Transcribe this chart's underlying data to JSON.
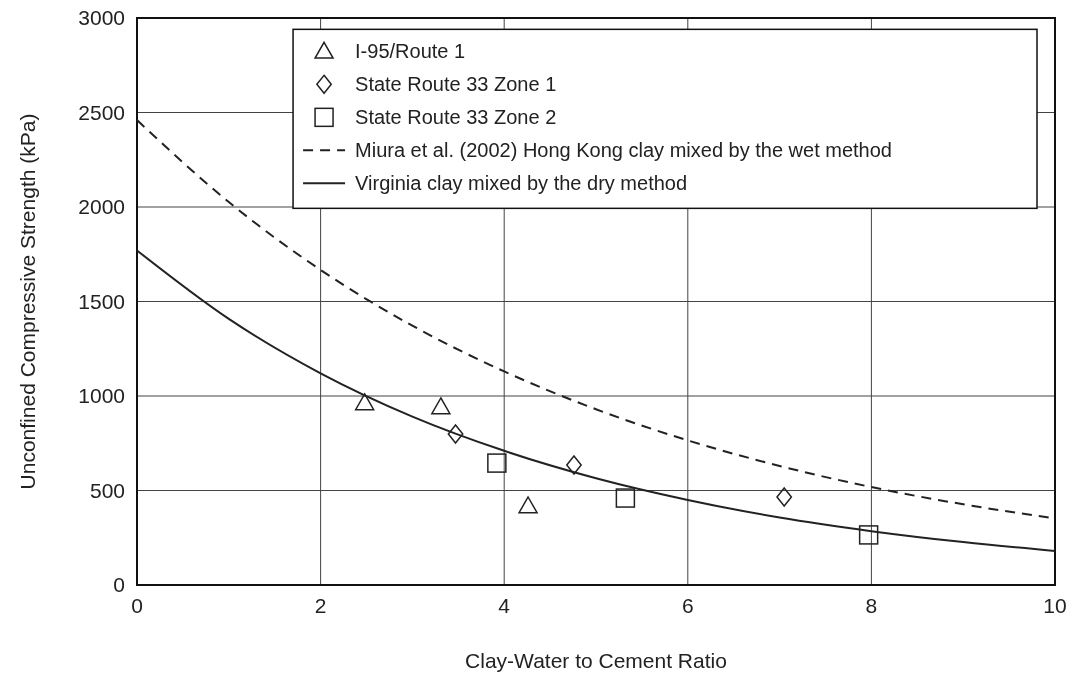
{
  "chart_data": {
    "type": "scatter",
    "xlabel": "Clay-Water to Cement Ratio",
    "ylabel": "Unconfined Compressive Strength (kPa)",
    "xlim": [
      0,
      10
    ],
    "xticks": [
      0,
      2,
      4,
      6,
      8,
      10
    ],
    "ylim": [
      0,
      3000
    ],
    "yticks": [
      0,
      500,
      1000,
      1500,
      2000,
      2500,
      3000
    ],
    "grid": true,
    "legend": "top",
    "series": [
      {
        "name": "I-95/Route 1",
        "marker": "triangle",
        "color": "#222222",
        "x": [
          2.48,
          3.31,
          4.26
        ],
        "values": [
          963,
          942,
          418
        ]
      },
      {
        "name": "State Route 33 Zone 1",
        "marker": "diamond",
        "color": "#222222",
        "x": [
          3.47,
          4.76,
          7.05
        ],
        "values": [
          799,
          635,
          466
        ]
      },
      {
        "name": "State Route 33 Zone 2",
        "marker": "square",
        "color": "#222222",
        "x": [
          3.92,
          5.32,
          7.97
        ],
        "values": [
          645,
          460,
          265
        ]
      },
      {
        "name": "Miura et al. (2002) Hong Kong clay mixed by the wet method",
        "type": "line",
        "marker": "none",
        "line_style": "dashed",
        "color": "#222222",
        "x": [
          0,
          1,
          2,
          3,
          4,
          5,
          6,
          7,
          8,
          9,
          10
        ],
        "values": [
          2460,
          2026,
          1667,
          1372,
          1130,
          930,
          765,
          630,
          518,
          427,
          352
        ]
      },
      {
        "name": "Virginia clay mixed by the dry method",
        "type": "line",
        "marker": "none",
        "line_style": "solid",
        "color": "#222222",
        "x": [
          0,
          1,
          2,
          3,
          4,
          5,
          6,
          7,
          8,
          9,
          10
        ],
        "values": [
          1770,
          1408,
          1120,
          891,
          710,
          565,
          450,
          357,
          285,
          227,
          180
        ]
      }
    ]
  }
}
